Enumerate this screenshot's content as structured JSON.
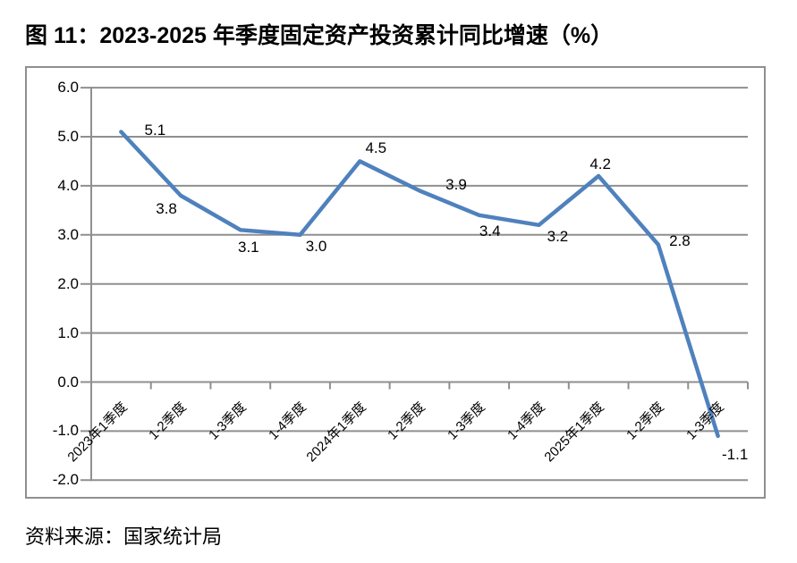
{
  "figure": {
    "title": "图 11：2023-2025 年季度固定资产投资累计同比增速（%）",
    "source": "资料来源：国家统计局"
  },
  "chart_data": {
    "type": "line",
    "title": "2023-2025 年季度固定资产投资累计同比增速（%）",
    "categories": [
      "2023年1季度",
      "1-2季度",
      "1-3季度",
      "1-4季度",
      "2024年1季度",
      "1-2季度",
      "1-3季度",
      "1-4季度",
      "2025年1季度",
      "1-2季度",
      "1-3季度"
    ],
    "values": [
      5.1,
      3.8,
      3.1,
      3.0,
      4.5,
      3.9,
      3.4,
      3.2,
      4.2,
      2.8,
      -1.1
    ],
    "data_labels": [
      "5.1",
      "3.8",
      "3.1",
      "3.0",
      "4.5",
      "3.9",
      "3.4",
      "3.2",
      "4.2",
      "2.8",
      "-1.1"
    ],
    "y_tick_labels": [
      "6.0",
      "5.0",
      "4.0",
      "3.0",
      "2.0",
      "1.0",
      "0.0",
      "-1.0",
      "-2.0"
    ],
    "ylim": [
      -2.0,
      6.0
    ],
    "xlabel": "",
    "ylabel": "",
    "grid": true,
    "legend": "none",
    "line_color": "#4F81BD",
    "grid_color": "#8F8F8F",
    "text_color": "#000000"
  }
}
